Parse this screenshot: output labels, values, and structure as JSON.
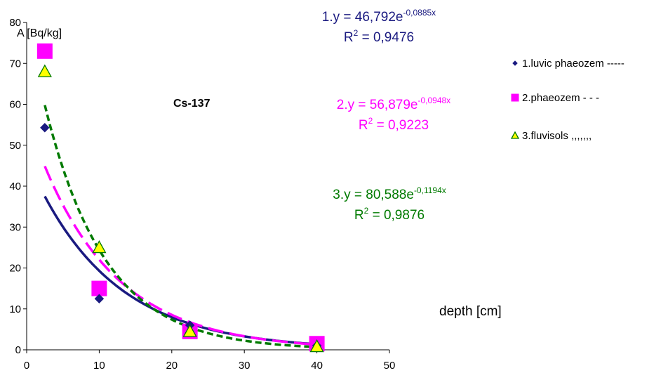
{
  "chart_data": {
    "type": "scatter",
    "title": "Cs-137",
    "ylabel": "A [Bq/kg]",
    "xlabel": "depth [cm]",
    "xlim": [
      0,
      50
    ],
    "ylim": [
      0,
      80
    ],
    "xticks": [
      0,
      10,
      20,
      30,
      40,
      50
    ],
    "yticks": [
      0,
      10,
      20,
      30,
      40,
      50,
      60,
      70,
      80
    ],
    "grid": false,
    "legend_position": "right",
    "series": [
      {
        "name": "1.luvic phaeozem -----",
        "marker": "diamond",
        "color": "#1a1a80",
        "trend_style": "solid",
        "points": [
          [
            2.5,
            54.3
          ],
          [
            10,
            12.5
          ],
          [
            22.5,
            6.0
          ],
          [
            40,
            1.0
          ]
        ],
        "fit": {
          "a": 46.792,
          "b": -0.0885
        },
        "equation": {
          "prefix": "1.y = 46,792e",
          "exponent": "-0,0885x",
          "r2_prefix": "R",
          "r2_sup": "2",
          "r2_value": " = 0,9476"
        }
      },
      {
        "name": "2.phaeozem - - -",
        "marker": "square",
        "color": "#ff00ff",
        "trend_style": "long-dash",
        "points": [
          [
            2.5,
            73.0
          ],
          [
            10,
            15.0
          ],
          [
            22.5,
            4.5
          ],
          [
            40,
            1.5
          ]
        ],
        "fit": {
          "a": 56.879,
          "b": -0.0948
        },
        "equation": {
          "prefix": "2.y = 56,879e",
          "exponent": "-0,0948x",
          "r2_prefix": "R",
          "r2_sup": "2",
          "r2_value": " = 0,9223"
        }
      },
      {
        "name": "3.fluvisols ,,,,,,,",
        "marker": "triangle",
        "color": "#007a00",
        "fill": "#ffff00",
        "trend_style": "short-dash",
        "points": [
          [
            2.5,
            68.0
          ],
          [
            10,
            25.0
          ],
          [
            22.5,
            4.5
          ],
          [
            40,
            0.8
          ]
        ],
        "fit": {
          "a": 80.588,
          "b": -0.1194
        },
        "equation": {
          "prefix": "3.y = 80,588e",
          "exponent": "-0,1194x",
          "r2_prefix": "R",
          "r2_sup": "2",
          "r2_value": " = 0,9876"
        }
      }
    ]
  }
}
